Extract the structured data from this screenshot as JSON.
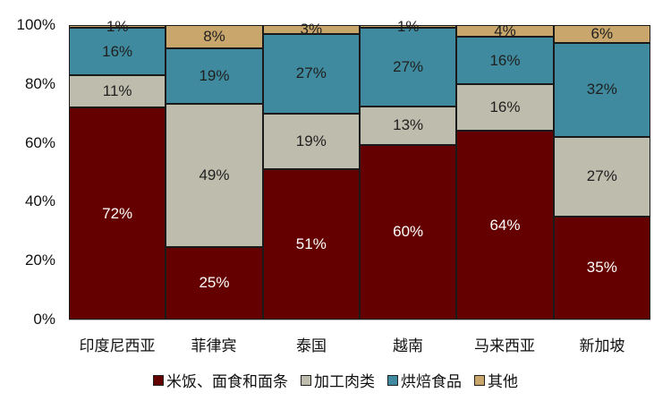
{
  "chart_data": {
    "type": "bar",
    "stacked": true,
    "percent": true,
    "title": "",
    "xlabel": "",
    "ylabel": "",
    "ylim": [
      0,
      100
    ],
    "yticks": [
      "0%",
      "20%",
      "40%",
      "60%",
      "80%",
      "100%"
    ],
    "categories": [
      "印度尼西亚",
      "菲律宾",
      "泰国",
      "越南",
      "马来西亚",
      "新加坡"
    ],
    "series": [
      {
        "name": "米饭、面食和面条",
        "color": "#650000",
        "values": [
          72,
          25,
          51,
          60,
          64,
          35
        ]
      },
      {
        "name": "加工肉类",
        "color": "#BEBCAD",
        "values": [
          11,
          49,
          19,
          13,
          16,
          27
        ]
      },
      {
        "name": "烘焙食品",
        "color": "#3F8A9E",
        "values": [
          16,
          19,
          27,
          27,
          16,
          32
        ]
      },
      {
        "name": "其他",
        "color": "#C9A66B",
        "values": [
          1,
          8,
          3,
          1,
          4,
          6
        ]
      }
    ],
    "legend_position": "bottom",
    "grid": false
  }
}
